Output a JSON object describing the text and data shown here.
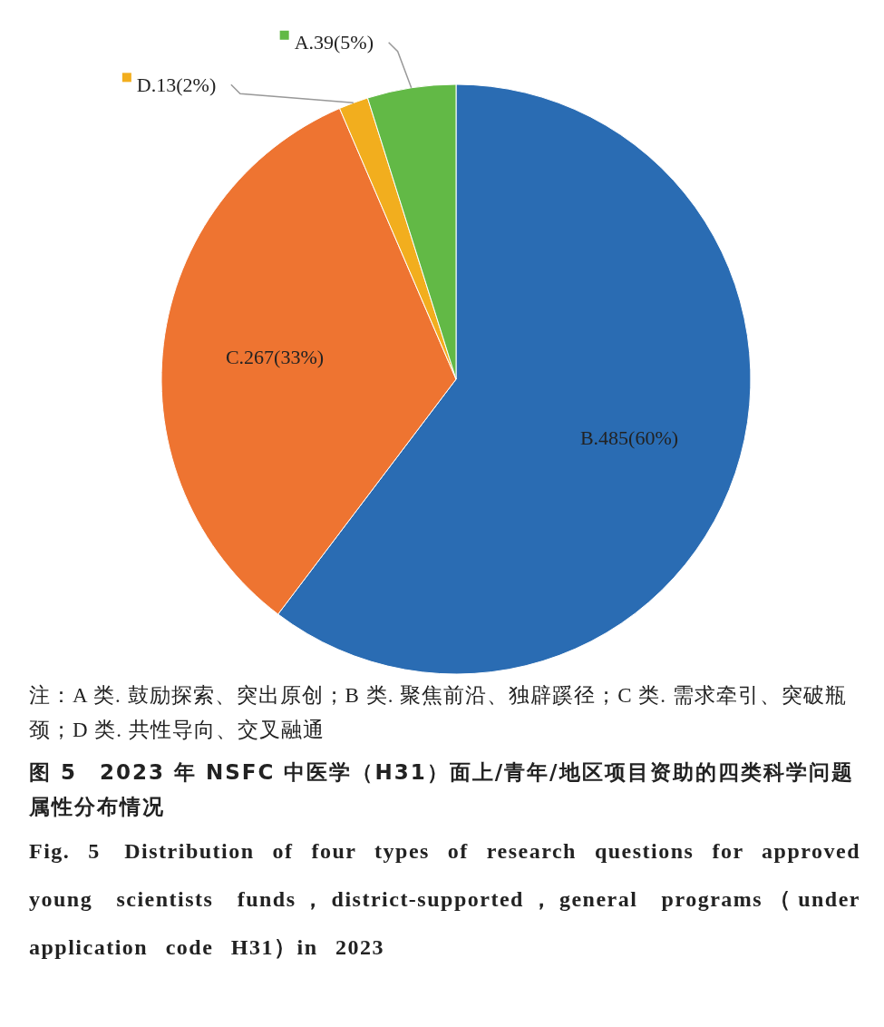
{
  "chart_data": {
    "type": "pie",
    "title": "图 5　2023 年 NSFC 中医学（H31）面上/青年/地区项目资助的四类科学问题属性分布情况",
    "subtitle": "Fig. 5　Distribution of four types of research questions for approved young scientists funds，district-supported，general programs（under application code H31）in 2023",
    "categories": [
      "B.",
      "C.",
      "D.",
      "A."
    ],
    "values": [
      485,
      267,
      13,
      39
    ],
    "colors": [
      "#2a6cb3",
      "#ee7431",
      "#f2ae1e",
      "#62b946"
    ],
    "value_labels": [
      "485(60%)",
      "267(33%)",
      "13(2%)",
      "39(5%)"
    ],
    "legend": "top left",
    "annotations": [
      "注：A 类. 鼓励探索、突出原创；B 类. 聚焦前沿、独辟蹊径；C 类. 需求牵引、突破瓶颈；D 类. 共性导向、交叉融通"
    ]
  }
}
